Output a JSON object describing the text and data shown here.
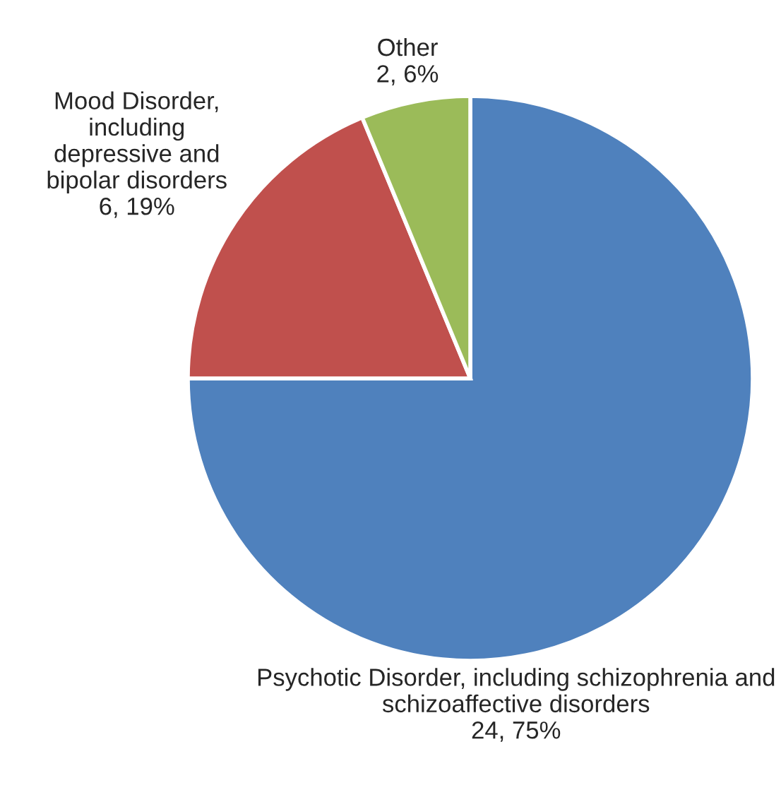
{
  "chart_data": {
    "type": "pie",
    "categories": [
      "Psychotic Disorder, including schizophrenia and\nschizoaffective disorders",
      "Mood Disorder,\nincluding\ndepressive and\nbipolar disorders",
      "Other"
    ],
    "values": [
      24,
      6,
      2
    ],
    "value_labels": [
      "24, 75%",
      "6, 19%",
      "2, 6%"
    ],
    "colors": [
      "#4f81bd",
      "#c0504d",
      "#9bbb59"
    ]
  }
}
